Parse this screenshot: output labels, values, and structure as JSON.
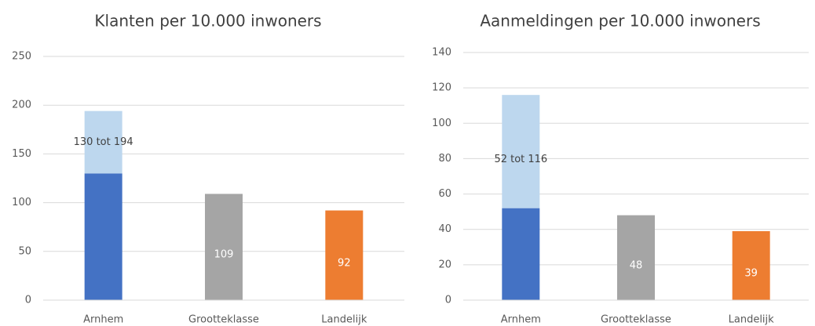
{
  "chart_data": [
    {
      "type": "bar",
      "title": "Klanten per 10.000 inwoners",
      "categories": [
        "Arnhem",
        "Grootteklasse",
        "Landelijk"
      ],
      "series": [
        {
          "colors": [
            "#4472c4",
            "#a5a5a5",
            "#ed7d31"
          ],
          "values": [
            130,
            109,
            92
          ],
          "data_labels": [
            false,
            true,
            true
          ]
        },
        {
          "color": "#bdd7ee",
          "values": [
            64,
            null,
            null
          ]
        }
      ],
      "annotation": "130 tot 194",
      "ylim": [
        0,
        250
      ],
      "yticks": [
        0,
        50,
        100,
        150,
        200,
        250
      ],
      "grid": true
    },
    {
      "type": "bar",
      "title": "Aanmeldingen per 10.000 inwoners",
      "categories": [
        "Arnhem",
        "Grootteklasse",
        "Landelijk"
      ],
      "series": [
        {
          "colors": [
            "#4472c4",
            "#a5a5a5",
            "#ed7d31"
          ],
          "values": [
            52,
            48,
            39
          ],
          "data_labels": [
            false,
            true,
            true
          ]
        },
        {
          "color": "#bdd7ee",
          "values": [
            64,
            null,
            null
          ]
        }
      ],
      "annotation": "52 tot 116",
      "ylim": [
        0,
        140
      ],
      "yticks": [
        0,
        20,
        40,
        60,
        80,
        100,
        120,
        140
      ],
      "grid": true
    }
  ]
}
